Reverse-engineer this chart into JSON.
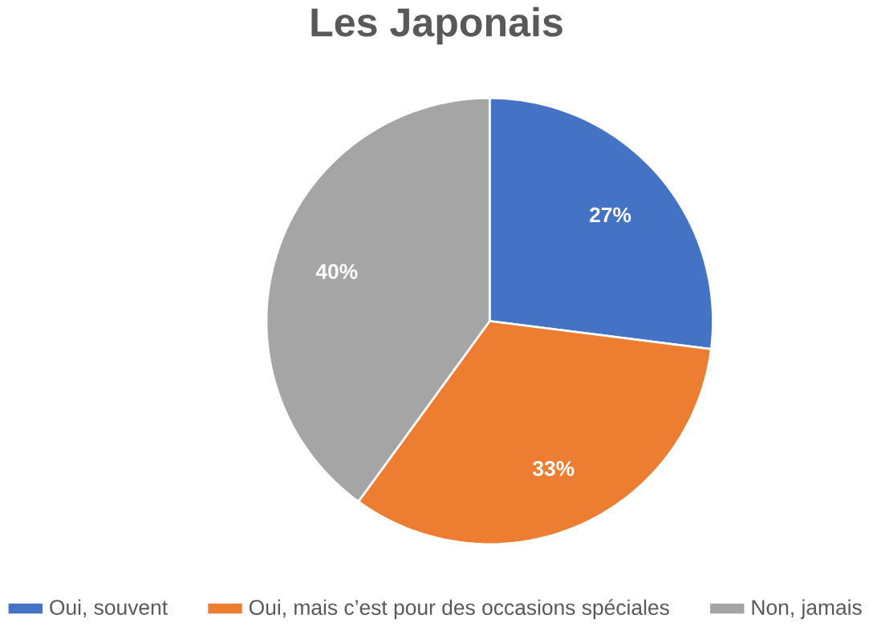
{
  "chart_data": {
    "type": "pie",
    "title": "Les Japonais",
    "categories": [
      "Oui, souvent",
      "Oui, mais c’est pour des occasions spéciales",
      "Non, jamais"
    ],
    "values": [
      27,
      33,
      40
    ],
    "colors": [
      "#4472c4",
      "#ed7d31",
      "#a5a5a5"
    ],
    "value_labels": [
      "27%",
      "33%",
      "40%"
    ],
    "legend": "bottom"
  }
}
